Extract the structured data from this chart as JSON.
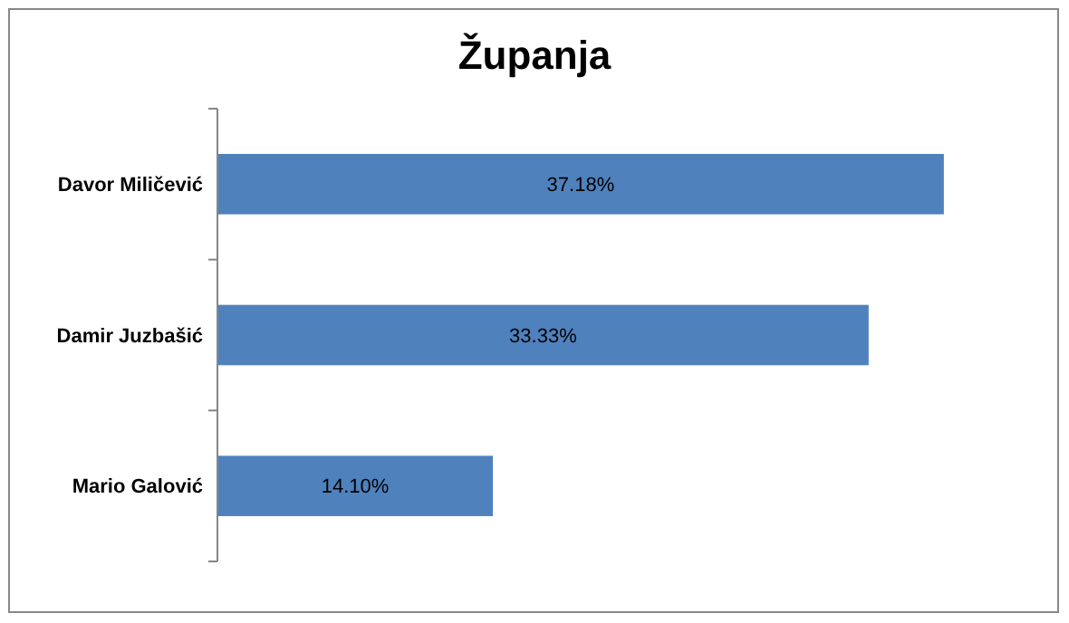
{
  "chart_data": {
    "type": "bar",
    "orientation": "horizontal",
    "title": "Županja",
    "categories": [
      "Davor Miličević",
      "Damir Juzbašić",
      "Mario Galović"
    ],
    "values": [
      37.18,
      33.33,
      14.1
    ],
    "value_labels": [
      "37.18%",
      "33.33%",
      "14.10%"
    ],
    "color": "#4f81bd"
  }
}
